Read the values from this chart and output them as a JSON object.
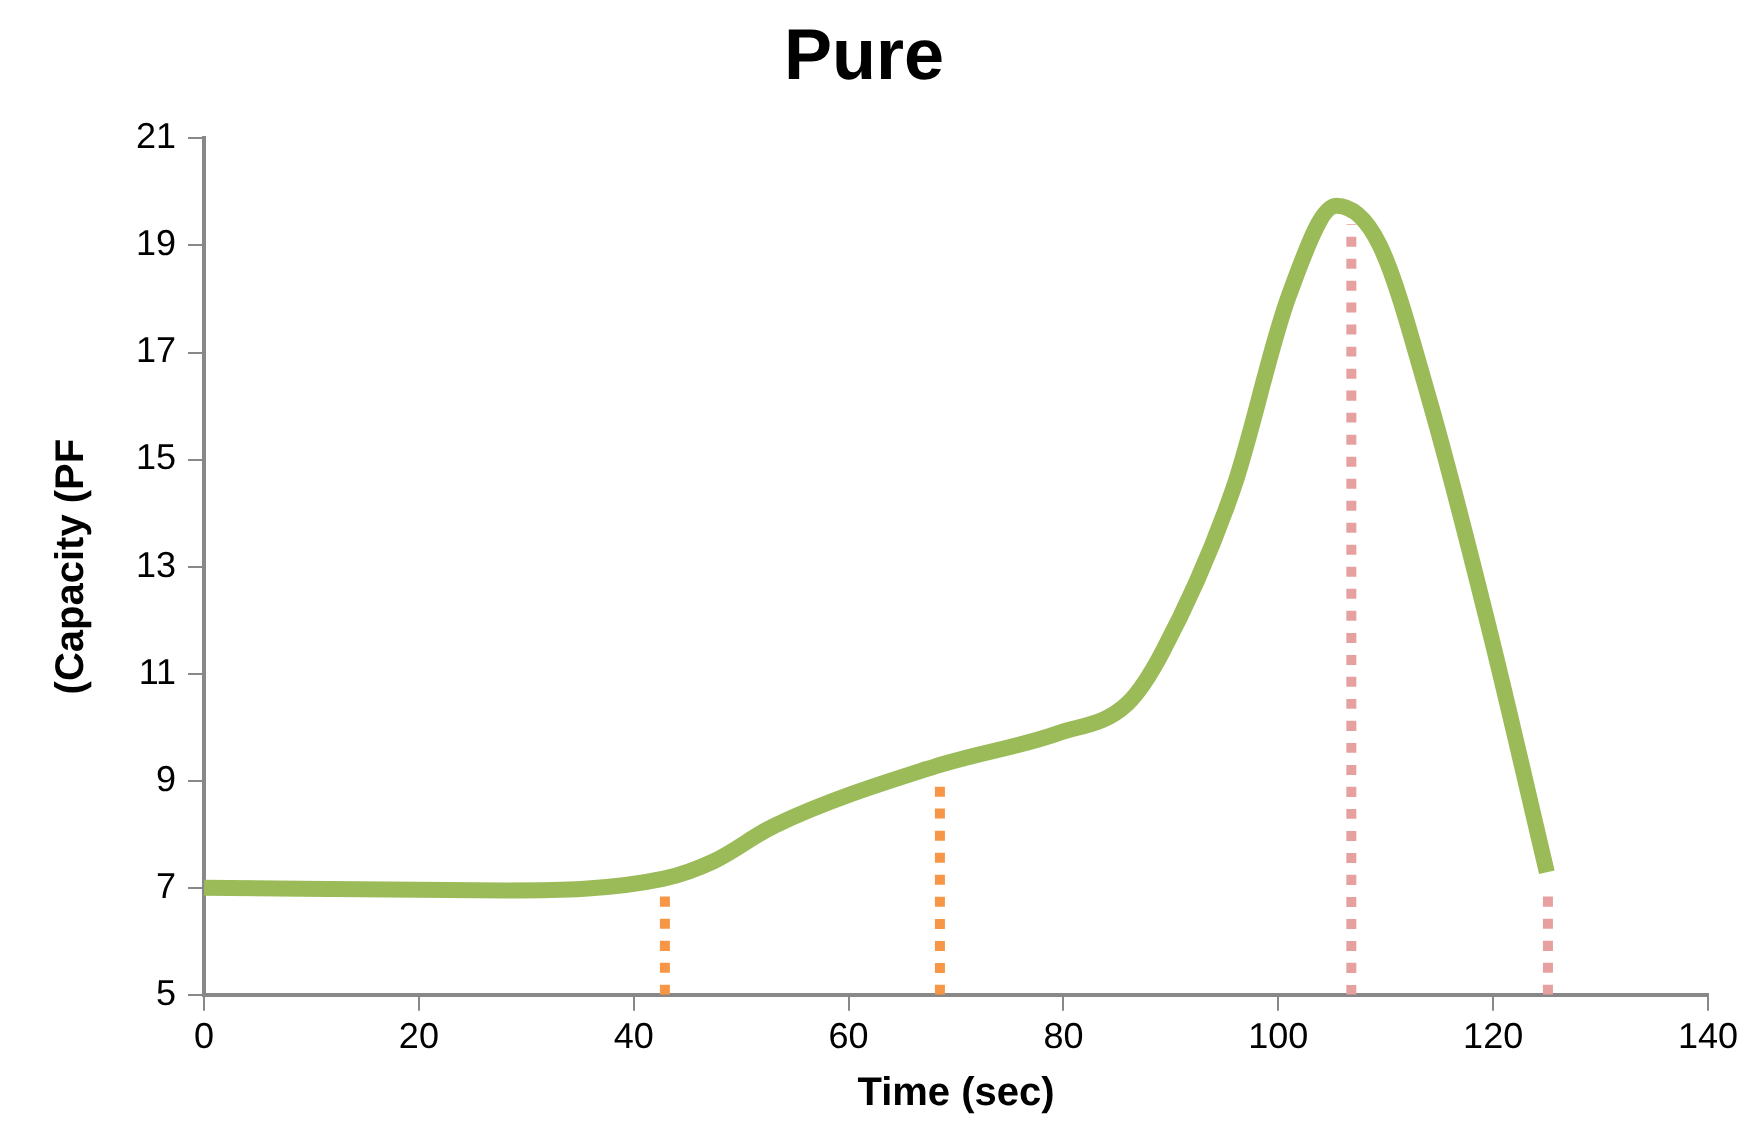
{
  "chart_data": {
    "type": "line",
    "title": "Pure",
    "xlabel": "Time (sec)",
    "ylabel": "(Capacity (PF",
    "xlim": [
      0,
      140
    ],
    "xticks": [
      0,
      20,
      40,
      60,
      80,
      100,
      120,
      140
    ],
    "ylim": [
      5,
      21
    ],
    "yticks": [
      5,
      7,
      9,
      11,
      13,
      15,
      17,
      19,
      21
    ],
    "grid": false,
    "legend": false,
    "marker": "none",
    "series": [
      {
        "color": "#9bbb59",
        "line_style": "solid",
        "x": [
          0,
          28,
          42.8,
          47.5,
          53.1,
          68.1,
          79.4,
          86,
          89.2,
          95.8,
          101,
          105.4,
          109.4,
          114,
          119.7,
          125
        ],
        "values": [
          7,
          6.95,
          7.17,
          7.5,
          8.16,
          9.27,
          9.88,
          10.45,
          11.4,
          14.45,
          18.07,
          19.74,
          19.02,
          16.16,
          11.78,
          7.29
        ]
      },
      {
        "color": "#f79646",
        "line_style": "dotted",
        "x": [
          42.9,
          42.9
        ],
        "values": [
          5,
          6.87
        ]
      },
      {
        "color": "#f79646",
        "line_style": "dotted",
        "x": [
          68.5,
          68.5
        ],
        "values": [
          5,
          9.06
        ]
      },
      {
        "color": "#e6a0a0",
        "line_style": "dotted",
        "x": [
          106.8,
          106.8
        ],
        "values": [
          5,
          19.4
        ]
      },
      {
        "color": "#e6a0a0",
        "line_style": "dotted",
        "x": [
          125.1,
          125.1
        ],
        "values": [
          5,
          6.87
        ]
      }
    ]
  }
}
